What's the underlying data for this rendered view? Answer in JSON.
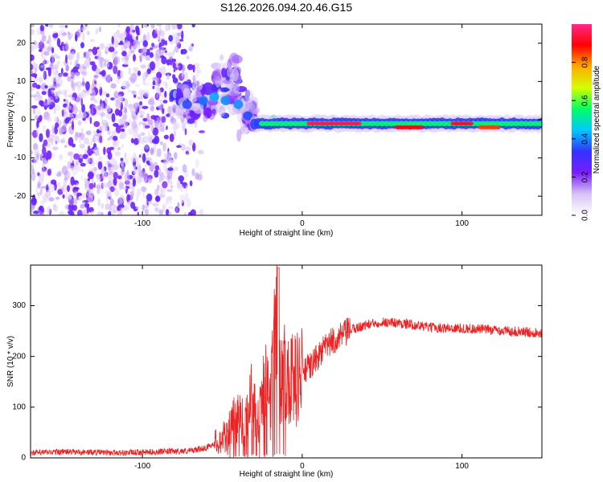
{
  "figure": {
    "title": "S126.2026.094.20.46.G15"
  },
  "chart_data": [
    {
      "type": "heatmap",
      "name": "spectrogram",
      "xlabel": "Height of straight line (km)",
      "ylabel": "Frequency (Hz)",
      "xlim": [
        -170,
        150
      ],
      "ylim": [
        -25,
        25
      ],
      "xticks": [
        -100,
        0,
        100
      ],
      "yticks": [
        -20,
        -10,
        0,
        10,
        20
      ],
      "colorbar": {
        "label": "Normalized spectral amplitude",
        "range": [
          0,
          1
        ],
        "ticks": [
          0.0,
          0.2,
          0.4,
          0.6,
          0.8
        ],
        "colors": [
          "#ffffff",
          "#d8c4f4",
          "#7a1cff",
          "#3333ff",
          "#00c8ff",
          "#00ff66",
          "#d4ff00",
          "#ffaa00",
          "#ff0000",
          "#ff2a8a"
        ]
      },
      "features": {
        "noise_region_x": [
          -170,
          -70
        ],
        "transition_region_x": [
          -80,
          -30
        ],
        "carrier_line_freq_hz": -1,
        "carrier_line_x": [
          -30,
          150
        ],
        "peak_segments": [
          {
            "x": [
              5,
              35
            ],
            "freq": -1,
            "amp": 0.95
          },
          {
            "x": [
              60,
              75
            ],
            "freq": -2,
            "amp": 0.9
          },
          {
            "x": [
              95,
              105
            ],
            "freq": -1,
            "amp": 0.92
          },
          {
            "x": [
              112,
              122
            ],
            "freq": -2,
            "amp": 0.85
          }
        ]
      }
    },
    {
      "type": "line",
      "name": "snr",
      "xlabel": "Height of straight line (km)",
      "ylabel": "SNR (10 * v/v)",
      "xlim": [
        -170,
        150
      ],
      "ylim": [
        0,
        380
      ],
      "xticks": [
        -100,
        0,
        100
      ],
      "yticks": [
        0,
        100,
        200,
        300
      ],
      "color": "#ee2222",
      "series": [
        {
          "name": "SNR",
          "x": [
            -170,
            -150,
            -130,
            -110,
            -90,
            -70,
            -60,
            -50,
            -45,
            -40,
            -36,
            -32,
            -28,
            -24,
            -20,
            -16,
            -14,
            -10,
            -5,
            0,
            5,
            10,
            15,
            20,
            25,
            30,
            40,
            50,
            60,
            70,
            80,
            90,
            100,
            110,
            120,
            130,
            140,
            150
          ],
          "y": [
            10,
            12,
            11,
            10,
            12,
            14,
            20,
            38,
            55,
            90,
            60,
            125,
            70,
            160,
            95,
            330,
            150,
            175,
            150,
            170,
            180,
            200,
            220,
            232,
            240,
            252,
            262,
            268,
            266,
            262,
            257,
            256,
            255,
            254,
            252,
            250,
            248,
            247
          ]
        }
      ]
    }
  ]
}
